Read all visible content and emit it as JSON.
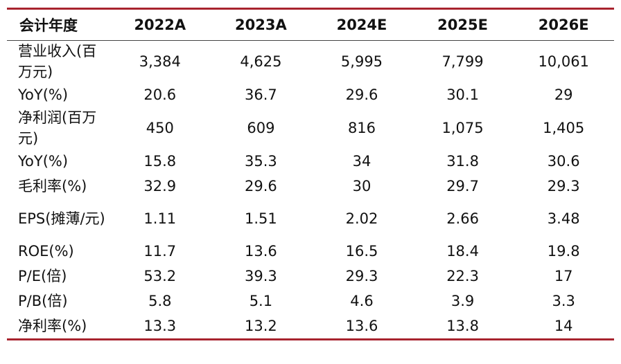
{
  "table": {
    "header": [
      "会计年度",
      "2022A",
      "2023A",
      "2024E",
      "2025E",
      "2026E"
    ],
    "rows": [
      {
        "label": "营业收入(百万元)",
        "values": [
          "3,384",
          "4,625",
          "5,995",
          "7,799",
          "10,061"
        ]
      },
      {
        "label": "YoY(%)",
        "values": [
          "20.6",
          "36.7",
          "29.6",
          "30.1",
          "29"
        ]
      },
      {
        "label": "净利润(百万元)",
        "values": [
          "450",
          "609",
          "816",
          "1,075",
          "1,405"
        ]
      },
      {
        "label": "YoY(%)",
        "values": [
          "15.8",
          "35.3",
          "34",
          "31.8",
          "30.6"
        ]
      },
      {
        "label": "毛利率(%)",
        "values": [
          "32.9",
          "29.6",
          "30",
          "29.7",
          "29.3"
        ]
      },
      {
        "label": "EPS(摊薄/元)",
        "values": [
          "1.11",
          "1.51",
          "2.02",
          "2.66",
          "3.48"
        ]
      },
      {
        "label": "ROE(%)",
        "values": [
          "11.7",
          "13.6",
          "16.5",
          "18.4",
          "19.8"
        ]
      },
      {
        "label": "P/E(倍)",
        "values": [
          "53.2",
          "39.3",
          "29.3",
          "22.3",
          "17"
        ]
      },
      {
        "label": "P/B(倍)",
        "values": [
          "5.8",
          "5.1",
          "4.6",
          "3.9",
          "3.3"
        ]
      },
      {
        "label": "净利率(%)",
        "values": [
          "13.3",
          "13.2",
          "13.6",
          "13.8",
          "14"
        ]
      }
    ]
  },
  "colors": {
    "rule": "#a8232e",
    "text": "#111111"
  }
}
